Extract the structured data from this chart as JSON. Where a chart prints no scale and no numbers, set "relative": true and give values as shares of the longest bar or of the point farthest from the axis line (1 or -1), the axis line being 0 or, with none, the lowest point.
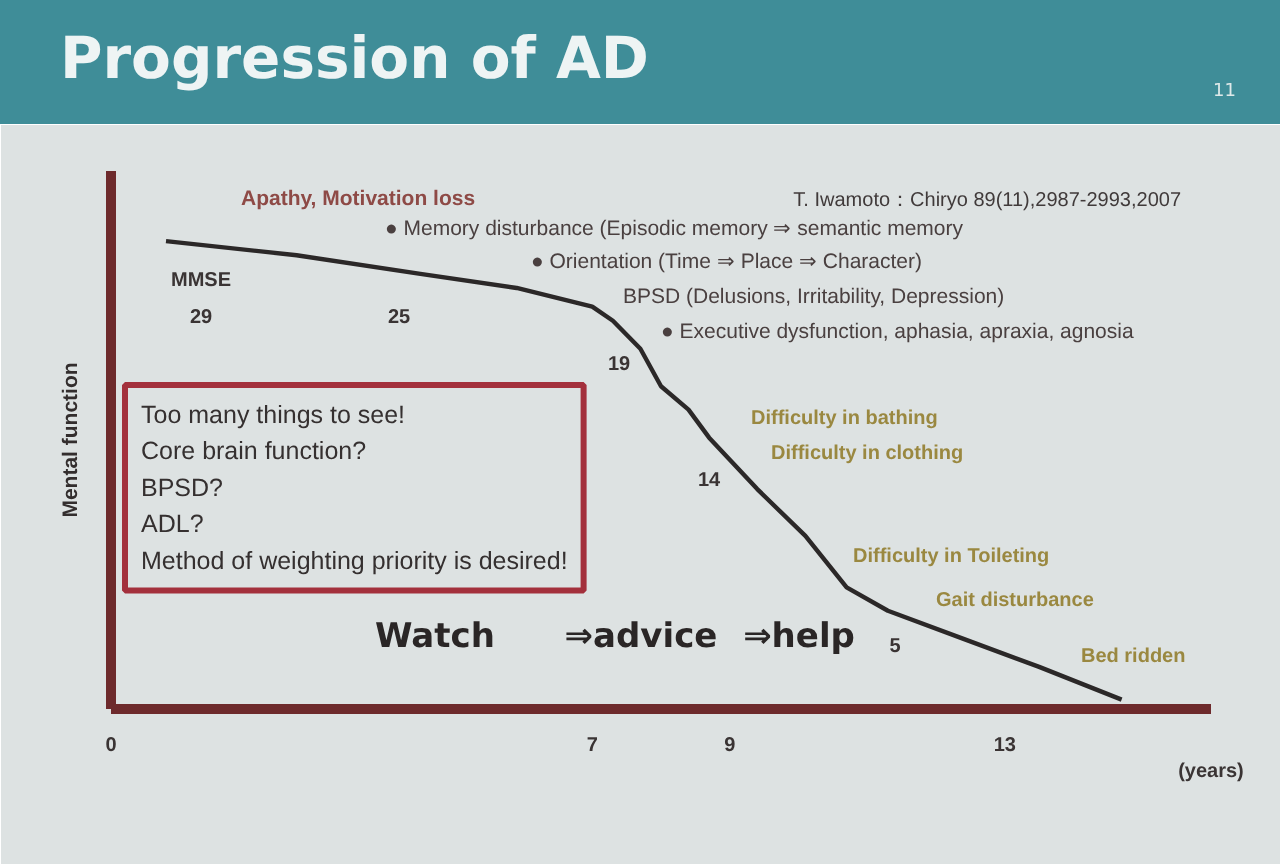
{
  "chart_data": {
    "type": "line",
    "title": "Progression of AD",
    "ylabel": "Mental function",
    "xlabel": "(years)",
    "relative": true,
    "x": [
      0.8,
      2.7,
      4.5,
      5.9,
      7.0,
      7.3,
      7.7,
      8.0,
      8.4,
      8.7,
      9.4,
      10.1,
      10.7,
      11.3,
      12.4,
      13.5,
      14.7
    ],
    "series": [
      {
        "color": "#2b2828",
        "values": [
          1.0,
          0.97,
          0.93,
          0.9,
          0.86,
          0.83,
          0.77,
          0.69,
          0.64,
          0.58,
          0.47,
          0.37,
          0.26,
          0.21,
          0.15,
          0.09,
          0.02
        ]
      }
    ],
    "xlim": [
      0,
      16
    ],
    "xticks": [
      0,
      7,
      9,
      13
    ],
    "annotations": [
      "T. Iwamoto：Chiryo 89(11),2987-2993,2007",
      "11",
      "Apathy, Motivation loss",
      "● Memory disturbance (Episodic memory ⇒ semantic memory",
      "MMSE",
      "29",
      "25",
      "● Orientation (Time ⇒ Place ⇒ Character)",
      "BPSD (Delusions, Irritability, Depression)",
      "● Executive dysfunction, aphasia, apraxia, agnosia",
      "19",
      "Difficulty in bathing",
      "Difficulty in clothing",
      "14",
      "Difficulty in Toileting",
      "Gait disturbance",
      "5",
      "Bed ridden",
      "Too many things to see!\nCore brain function?\nBPSD?\nADL?\nMethod of weighting priority is desired!",
      "Watch",
      "⇒advice",
      "⇒help"
    ]
  }
}
